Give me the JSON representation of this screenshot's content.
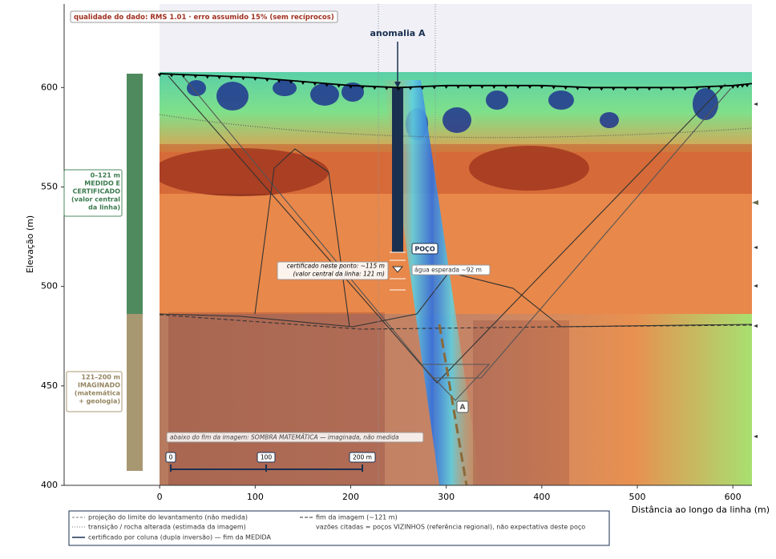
{
  "chart_data": {
    "type": "section",
    "ylabel": "Elevação (m)",
    "xlabel": "Distância ao longo da linha (m)",
    "xlim": [
      -100,
      620
    ],
    "ylim": [
      400,
      642
    ],
    "xticks": [
      0,
      100,
      200,
      300,
      400,
      500,
      600
    ],
    "yticks": [
      400,
      450,
      500,
      550,
      600
    ],
    "topography": {
      "x": [
        0,
        50,
        100,
        150,
        200,
        250,
        300,
        350,
        400,
        450,
        500,
        550,
        600,
        620
      ],
      "y": [
        607,
        606,
        605,
        603,
        601,
        600,
        601,
        601,
        601,
        600,
        600,
        600,
        601,
        602
      ]
    },
    "quality_note": "qualidade do dado: RMS 1.01 · erro assumido 15% (sem recíprocos)",
    "anomaly_label": "anomalia A",
    "well_label": "POÇO",
    "certified_note": [
      "certificado neste ponto: ~115 m",
      "(valor central da linha: 121 m)"
    ],
    "water_note": "água esperada ~92 m",
    "shadow_note": "abaixo do fim da imagem: SOMBRA MATEMÁTICA — imaginada, não medida",
    "scale_labels": [
      "0",
      "100",
      "200 m"
    ],
    "marker_label": "A",
    "measured_column": [
      "0–121 m",
      "MEDIDO E",
      "CERTIFICADO",
      "(valor central",
      "da linha)"
    ],
    "imagined_column": [
      "121–200 m",
      "IMAGINADO",
      "(matemática",
      "+ geologia)"
    ],
    "legend": [
      "projeção do limite do levantamento (não medida)",
      "transição / rocha alterada (estimada da imagem)",
      "certificado por coluna (dupla inversão) — fim da MEDIDA",
      "fim da imagem (~121 m)",
      "vazões citadas = poços VIZINHOS (referência regional), não expectativa deste poço"
    ]
  }
}
